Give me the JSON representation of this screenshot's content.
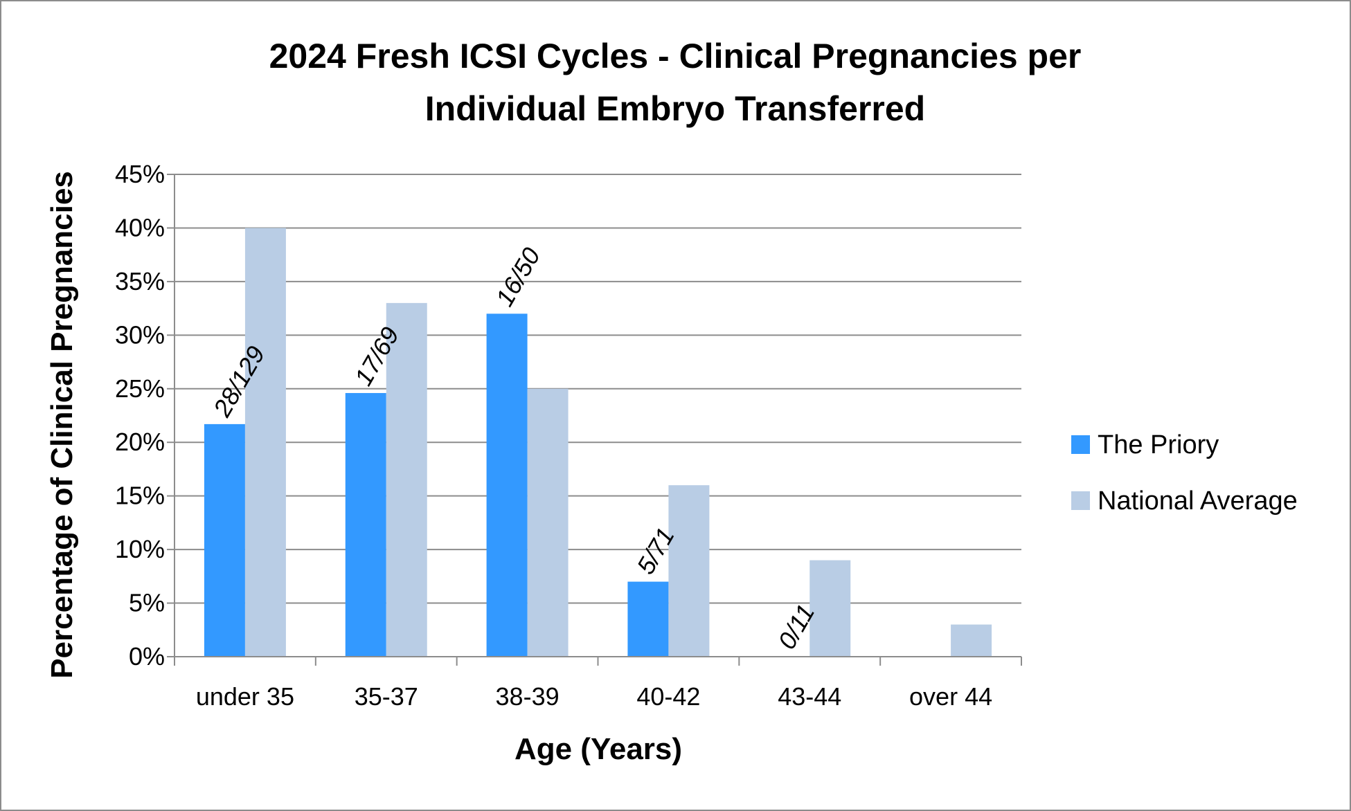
{
  "chart_data": {
    "type": "bar",
    "title_line1": "2024 Fresh ICSI Cycles - Clinical Pregnancies per",
    "title_line2": "Individual Embryo Transferred",
    "xlabel": "Age (Years)",
    "ylabel": "Percentage of Clinical Pregnancies",
    "categories": [
      "under 35",
      "35-37",
      "38-39",
      "40-42",
      "43-44",
      "over 44"
    ],
    "ylim": [
      0,
      45
    ],
    "yticks": [
      0,
      5,
      10,
      15,
      20,
      25,
      30,
      35,
      40,
      45
    ],
    "ytick_labels": [
      "0%",
      "5%",
      "10%",
      "15%",
      "20%",
      "25%",
      "30%",
      "35%",
      "40%",
      "45%"
    ],
    "grid": true,
    "legend_position": "right",
    "series": [
      {
        "name": "The Priory",
        "color": "#3399ff",
        "values": [
          21.7,
          24.6,
          32.0,
          7.0,
          0.0,
          null
        ],
        "labels": [
          "28/129",
          "17/69",
          "16/50",
          "5/71",
          "0/11",
          ""
        ]
      },
      {
        "name": "National Average",
        "color": "#b9cde5",
        "values": [
          40,
          33,
          25,
          16,
          9,
          3
        ],
        "labels": [
          "",
          "",
          "",
          "",
          "",
          ""
        ]
      }
    ]
  }
}
